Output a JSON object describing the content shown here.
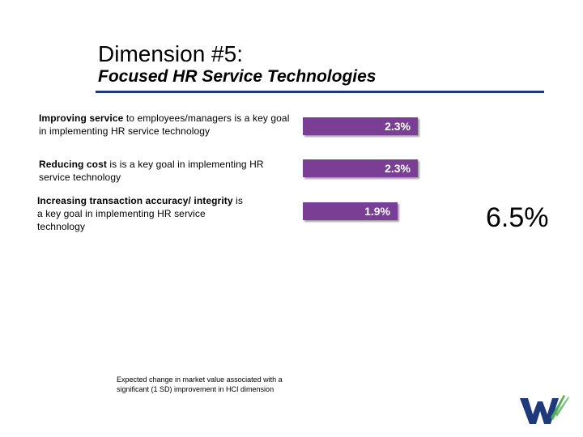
{
  "header": {
    "title": "Dimension #5:",
    "subtitle": "Focused HR Service Technologies"
  },
  "rows": [
    {
      "bold": "Improving service",
      "rest": " to employees/managers is a key goal in implementing HR service technology"
    },
    {
      "bold": "Reducing cost",
      "rest": " is is a key goal in implementing HR service technology"
    },
    {
      "bold": "Increasing transaction accuracy/ integrity",
      "rest": " is a key goal in implementing HR service technology"
    }
  ],
  "chart_data": {
    "type": "bar",
    "orientation": "horizontal",
    "categories": [
      "Improving service",
      "Reducing cost",
      "Increasing transaction accuracy/ integrity"
    ],
    "values": [
      2.3,
      2.3,
      1.9
    ],
    "value_labels": [
      "2.3%",
      "2.3%",
      "1.9%"
    ],
    "unit": "%",
    "bar_color": "#7a3f94",
    "total_label": "6.5%"
  },
  "footnote": "Expected change in market value associated with a significant (1 SD) improvement in HCI dimension",
  "colors": {
    "bar": "#7a3f94",
    "rule": "#1f3a7a",
    "logo_blue": "#1f3a7a",
    "logo_green": "#4caf50"
  }
}
